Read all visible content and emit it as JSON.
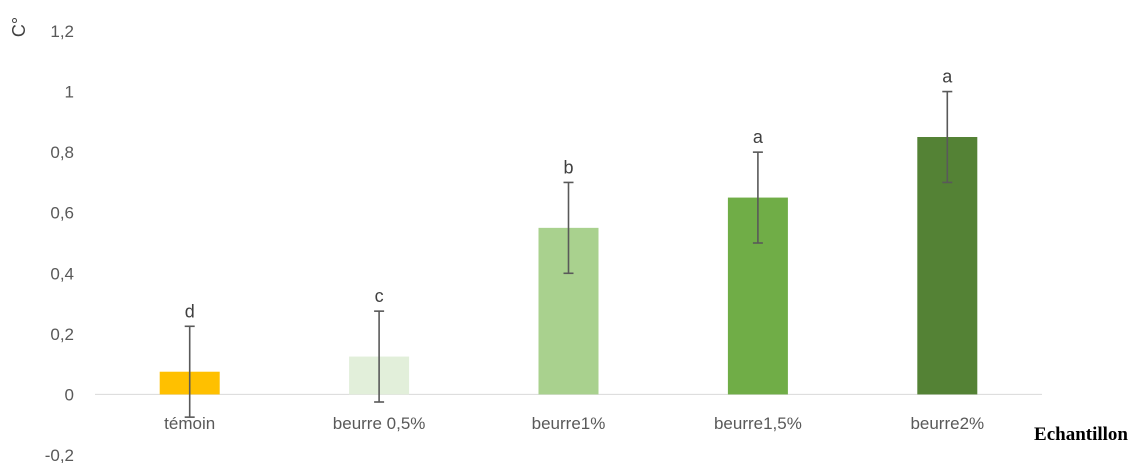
{
  "chart_data": {
    "type": "bar",
    "title": "",
    "xlabel": "Echantillon",
    "ylabel": "C°",
    "ylim": [
      -0.2,
      1.2
    ],
    "yticks": [
      -0.2,
      0,
      0.2,
      0.4,
      0.6,
      0.8,
      1,
      1.2
    ],
    "ytick_labels": [
      "-0,2",
      "0",
      "0,2",
      "0,4",
      "0,6",
      "0,8",
      "1",
      "1,2"
    ],
    "grid": false,
    "legend": "none",
    "categories": [
      "témoin",
      "beurre 0,5%",
      "beurre1%",
      "beurre1,5%",
      "beurre2%"
    ],
    "values": [
      0.075,
      0.125,
      0.55,
      0.65,
      0.85
    ],
    "error": [
      0.15,
      0.15,
      0.15,
      0.15,
      0.15
    ],
    "significance_letters": [
      "d",
      "c",
      "b",
      "a",
      "a"
    ],
    "colors": [
      "#FFC000",
      "#E2EFDA",
      "#A9D18E",
      "#70AD47",
      "#548235"
    ]
  }
}
